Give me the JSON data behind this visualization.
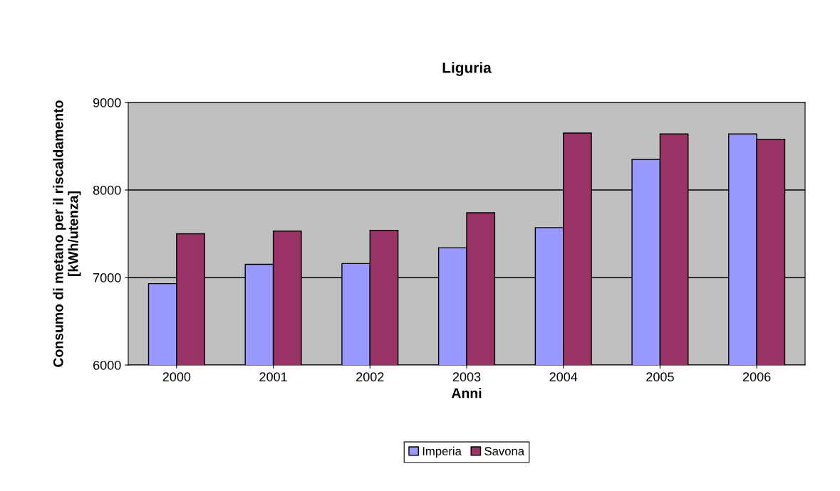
{
  "chart_data": {
    "type": "bar",
    "title": "Liguria",
    "xlabel": "Anni",
    "ylabel": "Consumo di metano per il riscaldamento\n[kWh/utenza]",
    "categories": [
      "2000",
      "2001",
      "2002",
      "2003",
      "2004",
      "2005",
      "2006"
    ],
    "series": [
      {
        "name": "Imperia",
        "color": "#9999ff",
        "values": [
          6930,
          7150,
          7160,
          7340,
          7570,
          8350,
          8640
        ]
      },
      {
        "name": "Savona",
        "color": "#993366",
        "values": [
          7500,
          7530,
          7540,
          7740,
          8650,
          8640,
          8580
        ]
      }
    ],
    "ylim": [
      6000,
      9000
    ],
    "yticks": [
      6000,
      7000,
      8000,
      9000
    ],
    "grid": "y",
    "legend": "bottom"
  }
}
